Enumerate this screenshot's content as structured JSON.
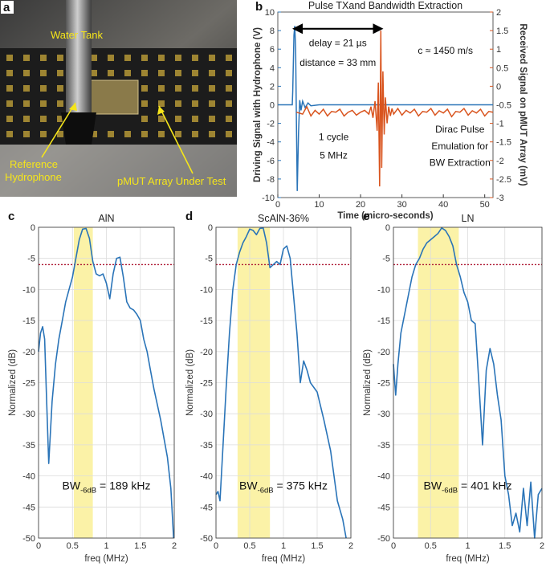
{
  "panel_a": {
    "letter": "a",
    "labels": {
      "water_tank": "Water Tank",
      "ref_line1": "Reference",
      "ref_line2": "Hydrophone",
      "pmut": "pMUT Array Under Test"
    },
    "colors": {
      "label": "#f5e51a"
    }
  },
  "chart_data": [
    {
      "id": "b",
      "letter": "b",
      "type": "line",
      "title": "Pulse TXand Bandwidth Extraction",
      "xlabel": "Time (micro-seconds)",
      "ylabel": "Driving Signal with Hydrophone (V)",
      "y2label": "Received Signal on pMUT Array (mV)",
      "xlim": [
        0,
        52
      ],
      "ylim": [
        -10,
        10
      ],
      "y2lim": [
        -3,
        2
      ],
      "xticks": [
        0,
        10,
        20,
        30,
        40,
        50
      ],
      "yticks": [
        -10,
        -8,
        -6,
        -4,
        -2,
        0,
        2,
        4,
        6,
        8,
        10
      ],
      "y2ticks": [
        -3,
        -2.5,
        -2,
        -1.5,
        -1,
        -0.5,
        0,
        0.5,
        1,
        1.5,
        2
      ],
      "y2ticklabels": [
        "-3",
        "-2.5",
        "-2",
        "-1.5",
        "-1",
        "-0.5",
        "0",
        "0.5",
        "1",
        "1.5",
        "2"
      ],
      "colors": {
        "left": "#2a74b8",
        "right": "#d9541e",
        "arrow": "#000000"
      },
      "series": [
        {
          "name": "Driving Signal",
          "axis": "left",
          "x": [
            0,
            3.5,
            3.6,
            3.9,
            4.1,
            4.3,
            4.5,
            4.7,
            5.0,
            5.3,
            5.6,
            6.0,
            6.6,
            7.3,
            8.0,
            10,
            15,
            20,
            25,
            30,
            35,
            40,
            45,
            50,
            52
          ],
          "y": [
            0,
            0,
            1.5,
            7.5,
            8.5,
            6.0,
            -2.0,
            -9.3,
            -3.0,
            0.5,
            -0.6,
            0.4,
            -0.3,
            0.2,
            -0.1,
            0,
            0,
            0,
            0,
            0,
            0,
            0,
            0,
            0,
            0
          ]
        },
        {
          "name": "Received Signal",
          "axis": "right",
          "x": [
            4.5,
            6,
            7,
            8,
            9,
            10,
            11,
            12,
            13,
            14,
            15,
            16,
            17,
            18,
            19,
            20,
            21,
            22,
            22.5,
            23,
            23.5,
            24,
            24.3,
            24.6,
            24.9,
            25.1,
            25.4,
            25.7,
            26,
            26.4,
            26.8,
            27.2,
            27.6,
            28,
            29,
            30,
            31,
            32,
            33,
            34,
            35,
            36,
            37,
            38,
            39,
            40,
            41,
            42,
            43,
            44,
            45,
            46,
            47,
            48,
            49,
            50,
            51,
            52
          ],
          "y": [
            -0.7,
            -0.75,
            -0.55,
            -0.8,
            -0.65,
            -0.75,
            -0.62,
            -0.8,
            -0.68,
            -0.7,
            -0.62,
            -0.8,
            -0.7,
            -0.65,
            -0.78,
            -0.7,
            -0.65,
            -0.75,
            -0.55,
            -0.85,
            -0.4,
            -1.2,
            0.1,
            -2.7,
            1.5,
            -2.2,
            0.4,
            -1.3,
            -0.3,
            -1.0,
            -0.55,
            -0.8,
            -0.6,
            -0.75,
            -0.6,
            -0.78,
            -0.65,
            -0.72,
            -0.62,
            -0.8,
            -0.68,
            -0.7,
            -0.6,
            -0.78,
            -0.66,
            -0.72,
            -0.62,
            -0.82,
            -0.68,
            -0.7,
            -0.6,
            -0.78,
            -0.66,
            -0.72,
            -0.62,
            -0.8,
            -0.68,
            -0.7
          ]
        }
      ],
      "arrow": {
        "x1": 4.0,
        "x2": 25.0,
        "y": 8.2
      },
      "annotations": [
        {
          "text": "delay = 21 µs",
          "x": 14.5,
          "y": 6.3
        },
        {
          "text": "distance = 33 mm",
          "x": 14.5,
          "y": 4.2
        },
        {
          "text": "c ≈ 1450 m/s",
          "x": 40.5,
          "y": 5.5
        },
        {
          "text": "1 cycle",
          "x": 13.5,
          "y": -3.8
        },
        {
          "text": "5 MHz",
          "x": 13.5,
          "y": -5.8
        },
        {
          "text": "Dirac Pulse",
          "x": 44.0,
          "y": -3.0
        },
        {
          "text": "Emulation for",
          "x": 44.0,
          "y": -4.8
        },
        {
          "text": "BW Extraction",
          "x": 44.0,
          "y": -6.6
        }
      ]
    },
    {
      "id": "c",
      "letter": "c",
      "type": "line",
      "title": "AlN",
      "xlabel": "freq (MHz)",
      "ylabel": "Normalized (dB)",
      "xlim": [
        0,
        2
      ],
      "ylim": [
        -50,
        0
      ],
      "xticks": [
        0,
        0.5,
        1,
        1.5,
        2
      ],
      "xticklabels": [
        "0",
        "0.5",
        "1",
        "1.5",
        "2"
      ],
      "yticks": [
        -50,
        -45,
        -40,
        -35,
        -30,
        -25,
        -20,
        -15,
        -10,
        -5,
        0
      ],
      "threshold": -6,
      "band": [
        0.52,
        0.8
      ],
      "bw_main": "BW",
      "bw_sub": "-6dB",
      "bw_value": " = 189 kHz",
      "colors": {
        "line": "#2a74b8",
        "band": "#fbf2a7",
        "threshold": "#b0203a"
      },
      "x": [
        0,
        0.03,
        0.06,
        0.09,
        0.12,
        0.15,
        0.2,
        0.25,
        0.3,
        0.35,
        0.4,
        0.45,
        0.5,
        0.55,
        0.6,
        0.65,
        0.7,
        0.75,
        0.8,
        0.85,
        0.9,
        0.95,
        1.0,
        1.05,
        1.1,
        1.15,
        1.2,
        1.25,
        1.3,
        1.35,
        1.4,
        1.45,
        1.5,
        1.55,
        1.6,
        1.65,
        1.7,
        1.75,
        1.8,
        1.85,
        1.9,
        1.95,
        1.99
      ],
      "y": [
        -20,
        -17,
        -16,
        -18,
        -28,
        -38,
        -28,
        -22,
        -18,
        -15,
        -12,
        -10,
        -8,
        -5,
        -2,
        -0.3,
        -0.2,
        -1.8,
        -5.5,
        -7.5,
        -7.8,
        -7.5,
        -9,
        -11.5,
        -7.5,
        -5,
        -4.8,
        -8,
        -12,
        -13,
        -13.3,
        -14,
        -15,
        -18,
        -20,
        -23,
        -26,
        -28.5,
        -31,
        -34,
        -37,
        -42,
        -50
      ]
    },
    {
      "id": "d",
      "letter": "d",
      "type": "line",
      "title": "ScAlN-36%",
      "xlabel": "freq (MHz)",
      "ylabel": "Normalized (dB)",
      "xlim": [
        0,
        2
      ],
      "ylim": [
        -50,
        0
      ],
      "xticks": [
        0,
        0.5,
        1,
        1.5,
        2
      ],
      "xticklabels": [
        "0",
        "0.5",
        "1",
        "1.5",
        "2"
      ],
      "yticks": [
        -50,
        -45,
        -40,
        -35,
        -30,
        -25,
        -20,
        -15,
        -10,
        -5,
        0
      ],
      "threshold": -6,
      "band": [
        0.32,
        0.8
      ],
      "bw_main": "BW",
      "bw_sub": "-6dB",
      "bw_value": " = 375 kHz",
      "colors": {
        "line": "#2a74b8",
        "band": "#fbf2a7",
        "threshold": "#b0203a"
      },
      "x": [
        0,
        0.03,
        0.06,
        0.1,
        0.15,
        0.2,
        0.25,
        0.3,
        0.35,
        0.4,
        0.45,
        0.5,
        0.55,
        0.6,
        0.65,
        0.7,
        0.75,
        0.8,
        0.85,
        0.9,
        0.95,
        1.0,
        1.05,
        1.1,
        1.15,
        1.2,
        1.25,
        1.3,
        1.35,
        1.4,
        1.5,
        1.6,
        1.7,
        1.8,
        1.88,
        1.93
      ],
      "y": [
        -43,
        -42.5,
        -44,
        -36,
        -26,
        -17,
        -10,
        -6,
        -4,
        -2.5,
        -1.5,
        -0.3,
        -0.5,
        -1.2,
        -0.2,
        -0.1,
        -2.5,
        -6.5,
        -6,
        -5.5,
        -6,
        -3.5,
        -3,
        -5,
        -11,
        -17,
        -25,
        -21.5,
        -23,
        -25,
        -26.5,
        -31,
        -36,
        -44,
        -47,
        -50
      ]
    },
    {
      "id": "e",
      "letter": "e",
      "type": "line",
      "title": "LN",
      "xlabel": "freq (MHz)",
      "ylabel": "Normalized (dB)",
      "xlim": [
        0,
        2
      ],
      "ylim": [
        -50,
        0
      ],
      "xticks": [
        0,
        0.5,
        1,
        1.5,
        2
      ],
      "xticklabels": [
        "0",
        "0.5",
        "1",
        "1.5",
        "2"
      ],
      "yticks": [
        -50,
        -45,
        -40,
        -35,
        -30,
        -25,
        -20,
        -15,
        -10,
        -5,
        0
      ],
      "threshold": -6,
      "band": [
        0.33,
        0.88
      ],
      "bw_main": "BW",
      "bw_sub": "-6dB",
      "bw_value": " = 401 kHz",
      "colors": {
        "line": "#2a74b8",
        "band": "#fbf2a7",
        "threshold": "#b0203a"
      },
      "x": [
        0,
        0.03,
        0.06,
        0.1,
        0.15,
        0.2,
        0.25,
        0.3,
        0.35,
        0.4,
        0.45,
        0.5,
        0.55,
        0.6,
        0.65,
        0.7,
        0.75,
        0.8,
        0.85,
        0.9,
        0.95,
        1.0,
        1.05,
        1.1,
        1.15,
        1.2,
        1.25,
        1.3,
        1.35,
        1.4,
        1.45,
        1.5,
        1.55,
        1.6,
        1.65,
        1.7,
        1.75,
        1.8,
        1.85,
        1.9,
        1.95,
        2.0
      ],
      "y": [
        -22,
        -27,
        -22,
        -17,
        -14,
        -11,
        -8,
        -6,
        -5,
        -3.5,
        -2.5,
        -2,
        -1.5,
        -1,
        -0.1,
        -0.5,
        -1.5,
        -3,
        -6,
        -8,
        -10.5,
        -12,
        -15,
        -15.5,
        -25,
        -35,
        -23,
        -19.5,
        -22,
        -27,
        -31,
        -40,
        -43,
        -48,
        -46,
        -49,
        -42,
        -48,
        -41,
        -50,
        -43,
        -42
      ]
    }
  ]
}
